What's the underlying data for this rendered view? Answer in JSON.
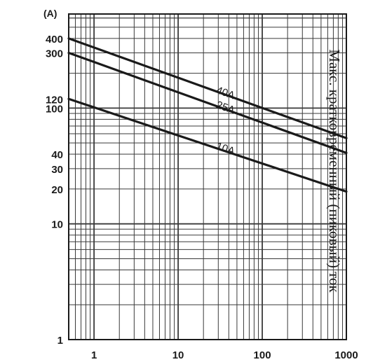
{
  "chart_data": {
    "type": "line",
    "title": "",
    "xlabel": "",
    "ylabel": "Макс. кратковременный (пиковый) ток",
    "y_unit": "(A)",
    "x_scale": "log",
    "y_scale": "log",
    "xlim": [
      0.5,
      1000
    ],
    "ylim": [
      1,
      650
    ],
    "x_ticks": [
      {
        "value": 1,
        "label": "1"
      },
      {
        "value": 10,
        "label": "10"
      },
      {
        "value": 100,
        "label": "100"
      },
      {
        "value": 1000,
        "label": "1000"
      }
    ],
    "y_ticks": [
      {
        "value": 1,
        "label": "1"
      },
      {
        "value": 10,
        "label": "10"
      },
      {
        "value": 20,
        "label": "20"
      },
      {
        "value": 30,
        "label": "30"
      },
      {
        "value": 40,
        "label": "40"
      },
      {
        "value": 100,
        "label": "100"
      },
      {
        "value": 120,
        "label": "120"
      },
      {
        "value": 300,
        "label": "300"
      },
      {
        "value": 400,
        "label": "400"
      }
    ],
    "grid": true,
    "series": [
      {
        "name": "40A",
        "x": [
          0.5,
          1000
        ],
        "y": [
          400,
          55
        ]
      },
      {
        "name": "25A",
        "x": [
          0.5,
          1000
        ],
        "y": [
          300,
          41
        ]
      },
      {
        "name": "10A",
        "x": [
          0.5,
          1000
        ],
        "y": [
          120,
          19
        ]
      }
    ],
    "colors": {
      "line": "#1a1a1a",
      "grid": "#3a3a3a",
      "background": "#ffffff"
    }
  }
}
